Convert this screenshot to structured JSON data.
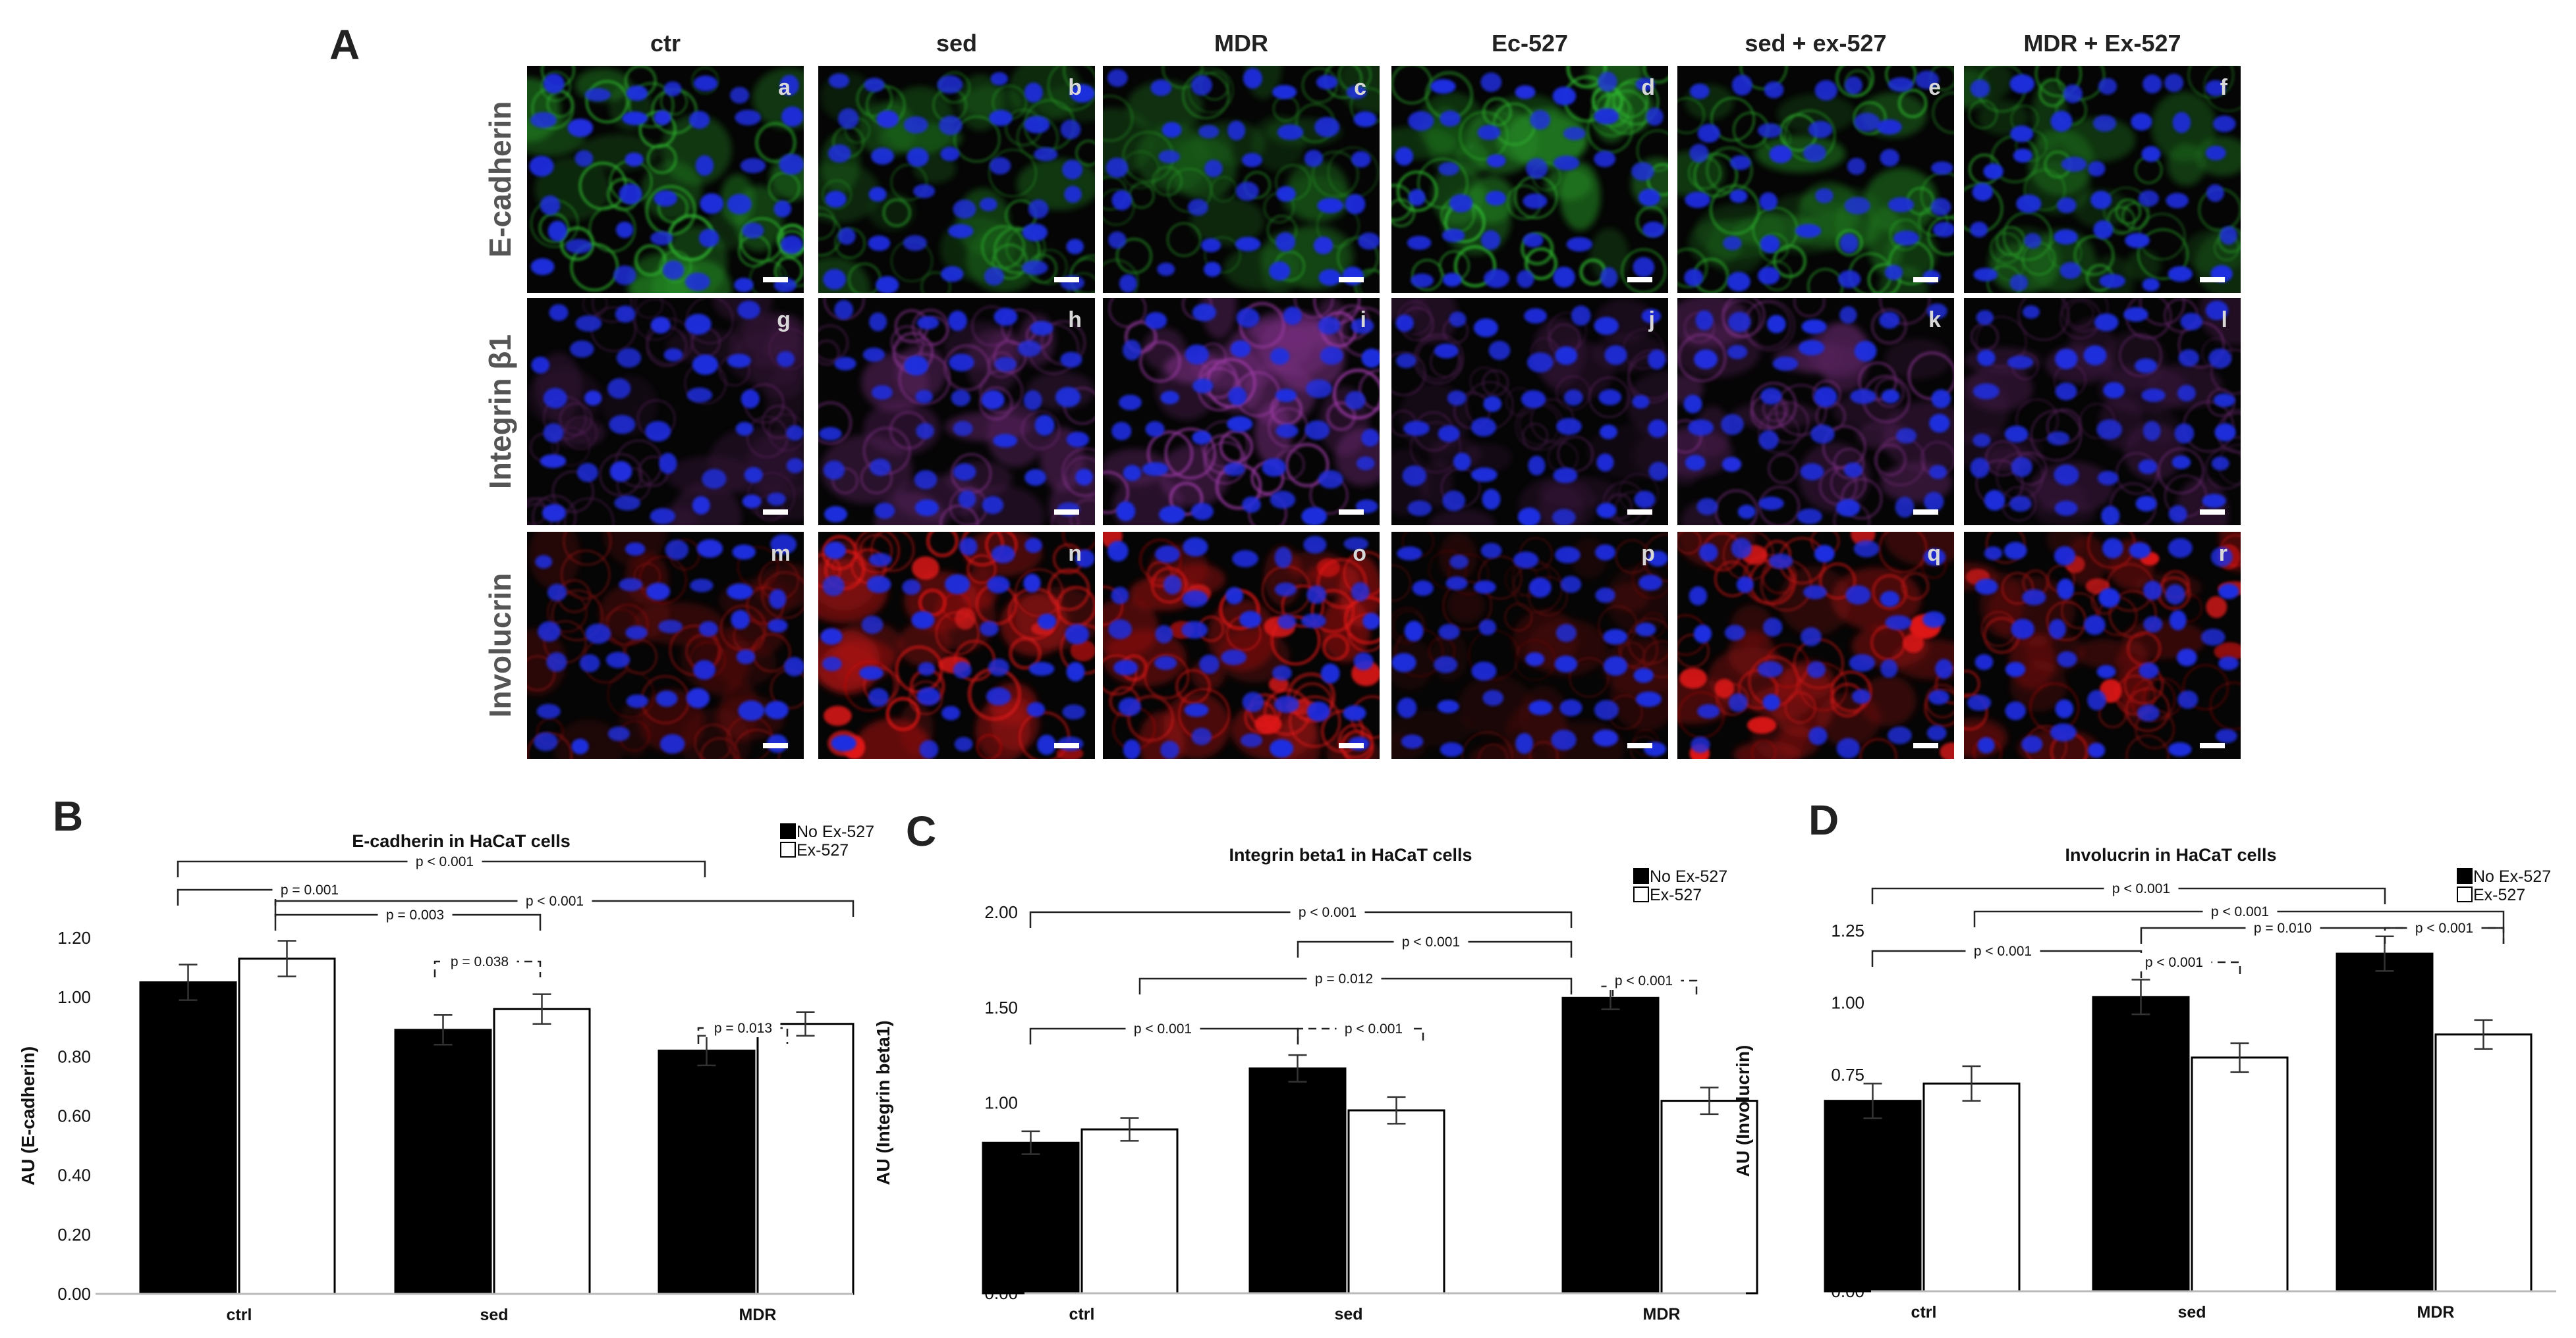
{
  "figure": {
    "panel_letters": [
      "A",
      "B",
      "C",
      "D"
    ],
    "micrographs": {
      "columns": [
        "ctr",
        "sed",
        "MDR",
        "Ec-527",
        "sed + ex-527",
        "MDR + Ex-527"
      ],
      "rows": [
        {
          "label": "E-cadherin",
          "letters": [
            "a",
            "b",
            "c",
            "d",
            "e",
            "f"
          ],
          "stain": "green"
        },
        {
          "label": "Integrin β1",
          "letters": [
            "g",
            "h",
            "i",
            "j",
            "k",
            "l"
          ],
          "stain": "magenta"
        },
        {
          "label": "Involucrin",
          "letters": [
            "m",
            "n",
            "o",
            "p",
            "q",
            "r"
          ],
          "stain": "red"
        }
      ],
      "colors": {
        "background": "#050505",
        "nucleus": "#1f2ee0",
        "green": "#2fb52f",
        "magenta": "#9a3aa4",
        "red": "#e01818"
      }
    }
  },
  "chart_data": [
    {
      "type": "bar",
      "panel": "B",
      "title": "E-cadherin in HaCaT cells",
      "ylabel": "AU (E-cadherin)",
      "ylim": [
        0,
        1.2
      ],
      "yticks": [
        "0.00",
        "0.20",
        "0.40",
        "0.60",
        "0.80",
        "1.00",
        "1.20"
      ],
      "categories": [
        "ctrl",
        "sed",
        "MDR"
      ],
      "series": [
        {
          "name": "No Ex-527",
          "values": [
            1.05,
            0.89,
            0.82
          ],
          "errors": [
            0.06,
            0.05,
            0.05
          ],
          "color": "#000000"
        },
        {
          "name": "Ex-527",
          "values": [
            1.13,
            0.96,
            0.91
          ],
          "errors": [
            0.06,
            0.05,
            0.04
          ],
          "color": "#ffffff"
        }
      ],
      "legend_position": "top-right",
      "comparisons": [
        {
          "text": "p < 0.001",
          "dashed": false
        },
        {
          "text": "p = 0.001",
          "dashed": false
        },
        {
          "text": "p < 0.001",
          "dashed": false
        },
        {
          "text": "p = 0.003",
          "dashed": false
        },
        {
          "text": "p = 0.038",
          "dashed": true
        },
        {
          "text": "p = 0.013",
          "dashed": true
        }
      ]
    },
    {
      "type": "bar",
      "panel": "C",
      "title": "Integrin beta1 in HaCaT cells",
      "ylabel": "AU (Integrin beta1)",
      "ylim": [
        0,
        2.0
      ],
      "yticks": [
        "0.00",
        "0.50",
        "1.00",
        "1.50",
        "2.00"
      ],
      "categories": [
        "ctrl",
        "sed",
        "MDR"
      ],
      "series": [
        {
          "name": "No Ex-527",
          "values": [
            0.79,
            1.18,
            1.55
          ],
          "errors": [
            0.06,
            0.07,
            0.06
          ],
          "color": "#000000"
        },
        {
          "name": "Ex-527",
          "values": [
            0.86,
            0.96,
            1.01
          ],
          "errors": [
            0.06,
            0.07,
            0.07
          ],
          "color": "#ffffff"
        }
      ],
      "legend_position": "top-right",
      "comparisons": [
        {
          "text": "p < 0.001",
          "dashed": false
        },
        {
          "text": "p < 0.001",
          "dashed": false
        },
        {
          "text": "p = 0.012",
          "dashed": false
        },
        {
          "text": "p < 0.001",
          "dashed": true
        },
        {
          "text": "p < 0.001",
          "dashed": false
        },
        {
          "text": "p < 0.001",
          "dashed": true
        }
      ]
    },
    {
      "type": "bar",
      "panel": "D",
      "title": "Involucrin in HaCaT cells",
      "ylabel": "AU (Involucrin)",
      "ylim": [
        0,
        1.25
      ],
      "yticks": [
        "0.00",
        "0.25",
        "0.50",
        "0.75",
        "1.00",
        "1.25"
      ],
      "categories": [
        "ctrl",
        "sed",
        "MDR"
      ],
      "series": [
        {
          "name": "No Ex-527",
          "values": [
            0.66,
            1.02,
            1.17
          ],
          "errors": [
            0.06,
            0.06,
            0.06
          ],
          "color": "#000000"
        },
        {
          "name": "Ex-527",
          "values": [
            0.72,
            0.81,
            0.89
          ],
          "errors": [
            0.06,
            0.05,
            0.05
          ],
          "color": "#ffffff"
        }
      ],
      "legend_position": "top-right",
      "comparisons": [
        {
          "text": "p < 0.001",
          "dashed": false
        },
        {
          "text": "p < 0.001",
          "dashed": false
        },
        {
          "text": "p = 0.010",
          "dashed": false
        },
        {
          "text": "p < 0.001",
          "dashed": false
        },
        {
          "text": "p < 0.001",
          "dashed": true
        },
        {
          "text": "p < 0.001",
          "dashed": true
        }
      ]
    }
  ]
}
